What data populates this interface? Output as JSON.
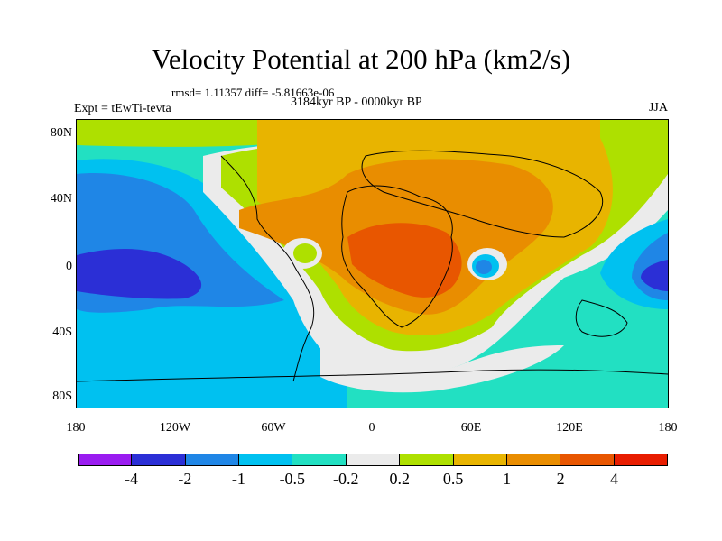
{
  "header": {
    "title": "Velocity Potential at 200 hPa (km2/s)",
    "stats": "rmsd= 1.11357 diff= -5.81663e-06",
    "expt": "Expt = tEwTi-tevta",
    "period": "3184kyr BP - 0000kyr BP",
    "season": "JJA"
  },
  "axes": {
    "y_ticks": [
      "80N",
      "40N",
      "0",
      "40S",
      "80S"
    ],
    "x_ticks": [
      "180",
      "120W",
      "60W",
      "0",
      "60E",
      "120E",
      "180"
    ]
  },
  "colorbar": {
    "colors": [
      "#9a1cf0",
      "#2b2fd6",
      "#1f86e6",
      "#00c1f0",
      "#22e0c2",
      "#ebebeb",
      "#aee000",
      "#e8b400",
      "#e98d00",
      "#e85600",
      "#e81d00"
    ],
    "labels": [
      "-4",
      "-2",
      "-1",
      "-0.5",
      "-0.2",
      "0.2",
      "0.5",
      "1",
      "2",
      "4"
    ]
  },
  "map": {
    "ocean_fill": "#22e0c2",
    "contour_colors": {
      "neutral": "#ebebeb",
      "weak_pos": "#aee000",
      "pos": "#e8b400",
      "mid_pos": "#e98d00",
      "strong_pos": "#e85600",
      "weak_neg": "#00c1f0",
      "neg": "#1f86e6",
      "strong_neg": "#2b2fd6"
    }
  }
}
